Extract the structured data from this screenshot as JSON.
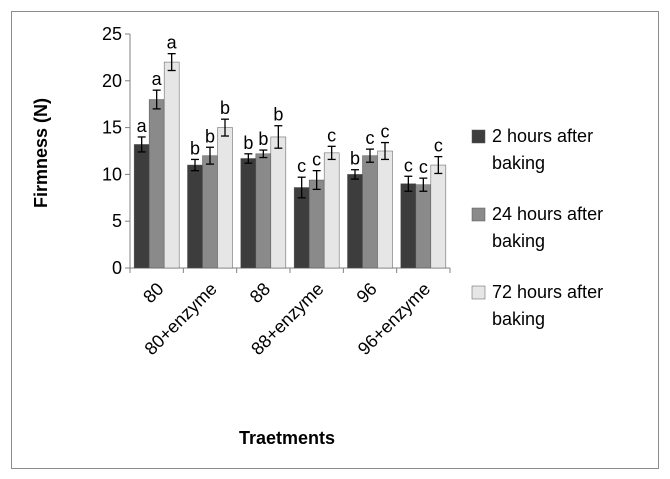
{
  "chart_data": {
    "type": "bar",
    "title": "",
    "xlabel": "Traetments",
    "ylabel": "Firmness (N)",
    "ylim": [
      0,
      25
    ],
    "yticks": [
      0,
      5,
      10,
      15,
      20,
      25
    ],
    "categories": [
      "80",
      "80+enzyme",
      "88",
      "88+enzyme",
      "96",
      "96+enzyme"
    ],
    "series": [
      {
        "name": "2 hours after baking",
        "values": [
          13.2,
          11.0,
          11.7,
          8.6,
          10.0,
          9.0
        ],
        "errors": [
          0.8,
          0.6,
          0.5,
          1.1,
          0.5,
          0.8
        ],
        "labels": [
          "a",
          "b",
          "b",
          "c",
          "b",
          "c"
        ],
        "color": "#3d3d3d"
      },
      {
        "name": "24 hours after baking",
        "values": [
          18.0,
          12.0,
          12.2,
          9.4,
          12.0,
          8.9
        ],
        "errors": [
          1.0,
          0.9,
          0.4,
          1.0,
          0.7,
          0.7
        ],
        "labels": [
          "a",
          "b",
          "b",
          "c",
          "c",
          "c"
        ],
        "color": "#8a8a8a"
      },
      {
        "name": "72 hours after baking",
        "values": [
          22.0,
          15.0,
          14.0,
          12.3,
          12.5,
          11.0
        ],
        "errors": [
          0.9,
          0.9,
          1.2,
          0.7,
          0.9,
          0.9
        ],
        "labels": [
          "a",
          "b",
          "b",
          "c",
          "c",
          "c"
        ],
        "color": "#e6e6e6"
      }
    ],
    "legend_position": "right",
    "grid": false,
    "error_bars": true
  }
}
